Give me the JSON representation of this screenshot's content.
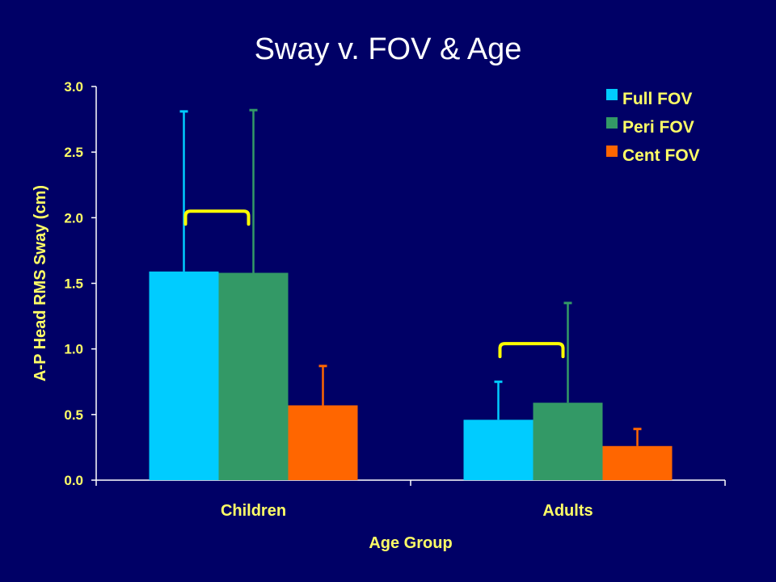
{
  "slide": {
    "title": "Sway v. FOV & Age"
  },
  "chart_data": {
    "type": "bar",
    "title": "Sway v. FOV & Age",
    "xlabel": "Age Group",
    "ylabel": "A-P Head RMS Sway (cm)",
    "ylim": [
      0,
      3
    ],
    "yticks": [
      "0.0",
      "0.5",
      "1.0",
      "1.5",
      "2.0",
      "2.5",
      "3.0"
    ],
    "categories": [
      "Children",
      "Adults"
    ],
    "series": [
      {
        "name": "Full FOV",
        "color": "#00ccff",
        "values": [
          1.59,
          0.46
        ],
        "error": [
          1.22,
          0.29
        ]
      },
      {
        "name": "Peri FOV",
        "color": "#339966",
        "values": [
          1.58,
          0.59
        ],
        "error": [
          1.24,
          0.76
        ]
      },
      {
        "name": "Cent FOV",
        "color": "#ff6600",
        "values": [
          0.57,
          0.26
        ],
        "error": [
          0.3,
          0.13
        ]
      }
    ],
    "significance_brackets": [
      {
        "category": "Children",
        "series": [
          "Full FOV",
          "Peri FOV"
        ],
        "y": 2.05
      },
      {
        "category": "Adults",
        "series": [
          "Full FOV",
          "Peri FOV"
        ],
        "y": 1.04
      }
    ],
    "legend_position": "top-right",
    "grid": false,
    "bracket_color": "#ffff00",
    "axis_color": "#ffffff"
  }
}
